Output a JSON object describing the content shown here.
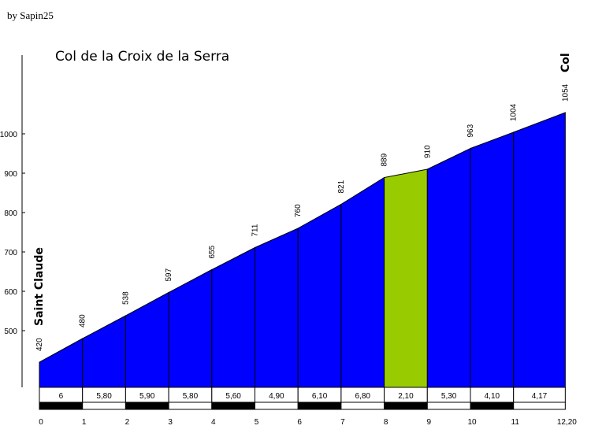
{
  "credit": "by Sapin25",
  "chart_data": {
    "type": "area",
    "title": "Col de la Croix de la Serra",
    "start_label": "Saint Claude",
    "end_label": "Col",
    "x_ticks": [
      "0",
      "1",
      "2",
      "3",
      "4",
      "5",
      "6",
      "7",
      "8",
      "9",
      "10",
      "11",
      "12,20"
    ],
    "x": [
      0,
      1,
      2,
      3,
      4,
      5,
      6,
      7,
      8,
      9,
      10,
      11,
      12.2
    ],
    "elevations": [
      420,
      480,
      538,
      597,
      655,
      711,
      760,
      821,
      889,
      910,
      963,
      1004,
      1054
    ],
    "elevation_labels": [
      "420",
      "480",
      "538",
      "597",
      "655",
      "711",
      "760",
      "821",
      "889",
      "910",
      "963",
      "1004",
      "1054"
    ],
    "y_ticks": [
      "500",
      "600",
      "700",
      "800",
      "900",
      "1000"
    ],
    "gradients": [
      "6",
      "5,80",
      "5,90",
      "5,80",
      "5,60",
      "4,90",
      "6,10",
      "6,80",
      "2,10",
      "5,30",
      "4,10",
      "4,17"
    ],
    "segment_colors": [
      "#0000ff",
      "#0000ff",
      "#0000ff",
      "#0000ff",
      "#0000ff",
      "#0000ff",
      "#0000ff",
      "#0000ff",
      "#99cc00",
      "#0000ff",
      "#0000ff",
      "#0000ff"
    ],
    "ylim": [
      400,
      1100
    ],
    "xlabel": "",
    "ylabel": ""
  }
}
